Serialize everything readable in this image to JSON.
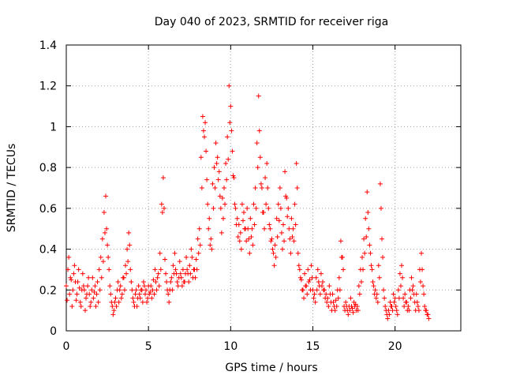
{
  "chart_data": {
    "type": "scatter",
    "title": "Day 040 of 2023, SRMTID for receiver riga",
    "xlabel": "GPS time / hours",
    "ylabel": "SRMTID / TECUs",
    "xlim": [
      0,
      24
    ],
    "ylim": [
      0,
      1.4
    ],
    "x_ticks": [
      0,
      5,
      10,
      15,
      20
    ],
    "x_tick_labels": [
      "0",
      "5",
      "10",
      "15",
      "20"
    ],
    "y_ticks": [
      0,
      0.2,
      0.4,
      0.6,
      0.8,
      1,
      1.2,
      1.4
    ],
    "y_tick_labels": [
      "0",
      "0.2",
      "0.4",
      "0.6",
      "0.8",
      "1",
      "1.2",
      "1.4"
    ],
    "grid": true,
    "marker": "+",
    "marker_color": "#ff0000",
    "series": [
      {
        "name": "SRMTID",
        "sample_step_hours": 0.1,
        "x_start": 0,
        "y": [
          0.22,
          0.3,
          0.18,
          0.25,
          0.2,
          0.32,
          0.15,
          0.24,
          0.21,
          0.12,
          0.28,
          0.2,
          0.16,
          0.22,
          0.18,
          0.14,
          0.26,
          0.19,
          0.12,
          0.24,
          0.3,
          0.36,
          0.45,
          0.58,
          0.66,
          0.42,
          0.3,
          0.18,
          0.12,
          0.1,
          0.16,
          0.2,
          0.14,
          0.22,
          0.18,
          0.26,
          0.32,
          0.4,
          0.48,
          0.3,
          0.2,
          0.14,
          0.18,
          0.12,
          0.22,
          0.16,
          0.2,
          0.24,
          0.18,
          0.14,
          0.22,
          0.19,
          0.16,
          0.25,
          0.3,
          0.2,
          0.28,
          0.38,
          0.62,
          0.75,
          0.35,
          0.24,
          0.18,
          0.2,
          0.26,
          0.32,
          0.38,
          0.28,
          0.22,
          0.34,
          0.26,
          0.3,
          0.24,
          0.36,
          0.28,
          0.32,
          0.4,
          0.26,
          0.3,
          0.35,
          0.45,
          0.5,
          0.85,
          1.05,
          0.95,
          0.88,
          0.62,
          0.55,
          0.45,
          0.72,
          0.8,
          0.92,
          0.85,
          0.78,
          0.6,
          0.65,
          0.7,
          0.82,
          0.95,
          1.2,
          1.1,
          0.88,
          0.75,
          0.6,
          0.55,
          0.52,
          0.48,
          0.62,
          0.58,
          0.5,
          0.6,
          0.45,
          0.55,
          0.5,
          0.62,
          0.7,
          0.92,
          1.15,
          0.85,
          0.7,
          0.58,
          0.75,
          0.82,
          0.6,
          0.5,
          0.45,
          0.38,
          0.42,
          0.55,
          0.62,
          0.7,
          0.48,
          0.52,
          0.78,
          0.65,
          0.6,
          0.45,
          0.55,
          0.5,
          0.62,
          0.82,
          0.38,
          0.3,
          0.25,
          0.2,
          0.28,
          0.22,
          0.3,
          0.25,
          0.32,
          0.2,
          0.18,
          0.26,
          0.3,
          0.22,
          0.28,
          0.24,
          0.2,
          0.18,
          0.16,
          0.22,
          0.14,
          0.18,
          0.12,
          0.15,
          0.2,
          0.26,
          0.44,
          0.36,
          0.12,
          0.14,
          0.1,
          0.12,
          0.16,
          0.11,
          0.14,
          0.13,
          0.12,
          0.22,
          0.3,
          0.36,
          0.45,
          0.55,
          0.68,
          0.5,
          0.38,
          0.3,
          0.22,
          0.2,
          0.18,
          0.32,
          0.72,
          0.45,
          0.2,
          0.12,
          0.08,
          0.1,
          0.14,
          0.12,
          0.18,
          0.16,
          0.1,
          0.2,
          0.28,
          0.32,
          0.16,
          0.18,
          0.14,
          0.12,
          0.2,
          0.26,
          0.22,
          0.14,
          0.18,
          0.12,
          0.3,
          0.38,
          0.22,
          0.12,
          0.1,
          0.08
        ]
      },
      {
        "name": "SRMTID",
        "sample_step_hours": 0.1,
        "x_start": 0.05,
        "y": [
          0.15,
          0.36,
          0.26,
          0.12,
          0.28,
          0.24,
          0.18,
          0.3,
          0.14,
          0.2,
          0.22,
          0.1,
          0.18,
          0.26,
          0.12,
          0.2,
          0.16,
          0.22,
          0.18,
          0.14,
          0.2,
          0.26,
          0.34,
          0.48,
          0.5,
          0.36,
          0.22,
          0.14,
          0.08,
          0.14,
          0.12,
          0.24,
          0.2,
          0.16,
          0.26,
          0.2,
          0.28,
          0.34,
          0.42,
          0.24,
          0.16,
          0.12,
          0.2,
          0.16,
          0.18,
          0.2,
          0.14,
          0.22,
          0.2,
          0.16,
          0.18,
          0.22,
          0.2,
          0.18,
          0.24,
          0.26,
          0.22,
          0.3,
          0.58,
          0.6,
          0.28,
          0.2,
          0.14,
          0.24,
          0.2,
          0.28,
          0.3,
          0.24,
          0.26,
          0.28,
          0.22,
          0.24,
          0.28,
          0.3,
          0.24,
          0.28,
          0.36,
          0.3,
          0.26,
          0.3,
          0.38,
          0.42,
          0.7,
          0.98,
          1.02,
          0.74,
          0.5,
          0.42,
          0.4,
          0.6,
          0.7,
          0.82,
          0.74,
          0.66,
          0.48,
          0.55,
          0.62,
          0.74,
          0.84,
          1.02,
          0.98,
          0.76,
          0.62,
          0.52,
          0.46,
          0.44,
          0.4,
          0.54,
          0.5,
          0.44,
          0.5,
          0.38,
          0.46,
          0.42,
          0.52,
          0.6,
          0.8,
          0.98,
          0.72,
          0.58,
          0.5,
          0.62,
          0.7,
          0.52,
          0.44,
          0.4,
          0.32,
          0.36,
          0.46,
          0.54,
          0.6,
          0.4,
          0.44,
          0.66,
          0.56,
          0.5,
          0.38,
          0.46,
          0.44,
          0.52,
          0.7,
          0.32,
          0.26,
          0.2,
          0.16,
          0.22,
          0.18,
          0.24,
          0.2,
          0.26,
          0.16,
          0.14,
          0.2,
          0.24,
          0.18,
          0.22,
          0.2,
          0.16,
          0.14,
          0.12,
          0.18,
          0.1,
          0.14,
          0.1,
          0.12,
          0.16,
          0.2,
          0.36,
          0.3,
          0.1,
          0.12,
          0.08,
          0.1,
          0.12,
          0.09,
          0.12,
          0.1,
          0.1,
          0.18,
          0.24,
          0.3,
          0.38,
          0.46,
          0.58,
          0.42,
          0.32,
          0.24,
          0.18,
          0.16,
          0.14,
          0.26,
          0.6,
          0.36,
          0.16,
          0.1,
          0.06,
          0.08,
          0.12,
          0.1,
          0.14,
          0.12,
          0.08,
          0.16,
          0.22,
          0.26,
          0.12,
          0.14,
          0.1,
          0.1,
          0.16,
          0.2,
          0.18,
          0.1,
          0.14,
          0.1,
          0.24,
          0.3,
          0.18,
          0.1,
          0.08,
          0.06
        ]
      }
    ]
  }
}
